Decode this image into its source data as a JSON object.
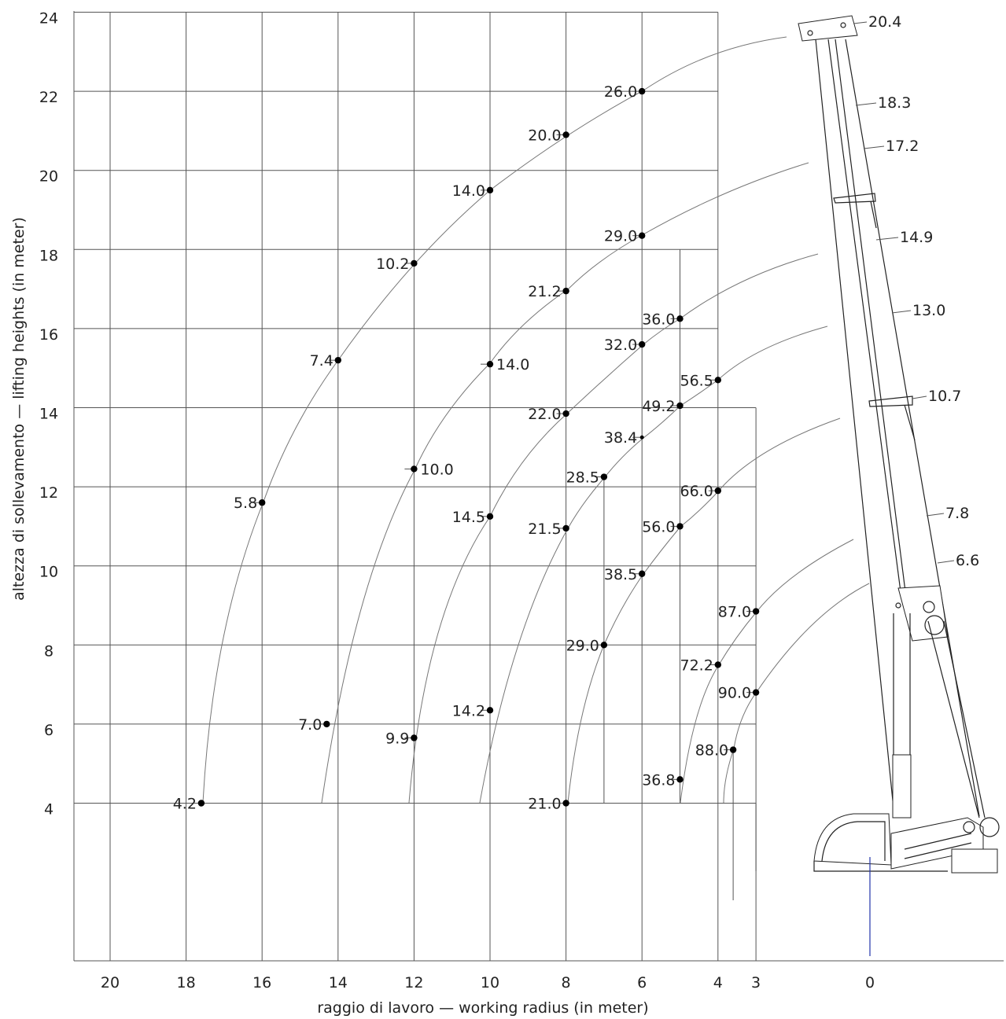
{
  "chart_data": {
    "type": "scatter",
    "title": "",
    "xlabel": "raggio di lavoro — working radius (in meter)",
    "ylabel": "altezza di sollevamento — lifting heights (in meter)",
    "x_ticks": [
      "20",
      "18",
      "16",
      "14",
      "12",
      "10",
      "8",
      "6",
      "4",
      "3",
      "0"
    ],
    "y_ticks": [
      "4",
      "6",
      "8",
      "10",
      "12",
      "14",
      "16",
      "18",
      "20",
      "22",
      "24"
    ],
    "x_direction": "reversed",
    "ylim": [
      0.3,
      24
    ],
    "grid": true,
    "points": [
      {
        "x": 6,
        "y": 22,
        "label": "26.0"
      },
      {
        "x": 8,
        "y": 20.9,
        "label": "20.0"
      },
      {
        "x": 10,
        "y": 19.5,
        "label": "14.0"
      },
      {
        "x": 12,
        "y": 17.65,
        "label": "10.2"
      },
      {
        "x": 14,
        "y": 15.2,
        "label": "7.4"
      },
      {
        "x": 16,
        "y": 11.6,
        "label": "5.8"
      },
      {
        "x": 14.3,
        "y": 6,
        "label": "7.0"
      },
      {
        "x": 17.6,
        "y": 4,
        "label": "4.2"
      },
      {
        "x": 6,
        "y": 18.35,
        "label": "29.0"
      },
      {
        "x": 8,
        "y": 16.95,
        "label": "21.2"
      },
      {
        "x": 10,
        "y": 15.1,
        "label": "14.0"
      },
      {
        "x": 12,
        "y": 12.45,
        "label": "10.0"
      },
      {
        "x": 12,
        "y": 5.65,
        "label": "9.9"
      },
      {
        "x": 5,
        "y": 16.25,
        "label": "36.0"
      },
      {
        "x": 6,
        "y": 15.6,
        "label": "32.0"
      },
      {
        "x": 8,
        "y": 13.85,
        "label": "22.0"
      },
      {
        "x": 10,
        "y": 11.25,
        "label": "14.5"
      },
      {
        "x": 10,
        "y": 6.35,
        "label": "14.2"
      },
      {
        "x": 4,
        "y": 14.7,
        "label": "56.5"
      },
      {
        "x": 5,
        "y": 14.05,
        "label": "49.2"
      },
      {
        "x": 6,
        "y": 13.25,
        "label": "38.4"
      },
      {
        "x": 7,
        "y": 12.25,
        "label": "28.5"
      },
      {
        "x": 8,
        "y": 10.95,
        "label": "21.5"
      },
      {
        "x": 7,
        "y": 8,
        "label": "29.0"
      },
      {
        "x": 8,
        "y": 4,
        "label": "21.0"
      },
      {
        "x": 4,
        "y": 11.9,
        "label": "66.0"
      },
      {
        "x": 5,
        "y": 11,
        "label": "56.0"
      },
      {
        "x": 6,
        "y": 9.8,
        "label": "38.5"
      },
      {
        "x": 5,
        "y": 4.6,
        "label": "36.8"
      },
      {
        "x": 3,
        "y": 8.85,
        "label": "87.0"
      },
      {
        "x": 4,
        "y": 7.5,
        "label": "72.2"
      },
      {
        "x": 3,
        "y": 6.8,
        "label": "90.0"
      },
      {
        "x": 3.6,
        "y": 5.35,
        "label": "88.0"
      }
    ],
    "boom_labels": [
      "20.4",
      "18.3",
      "17.2",
      "14.9",
      "13.0",
      "10.7",
      "7.8",
      "6.6"
    ]
  }
}
